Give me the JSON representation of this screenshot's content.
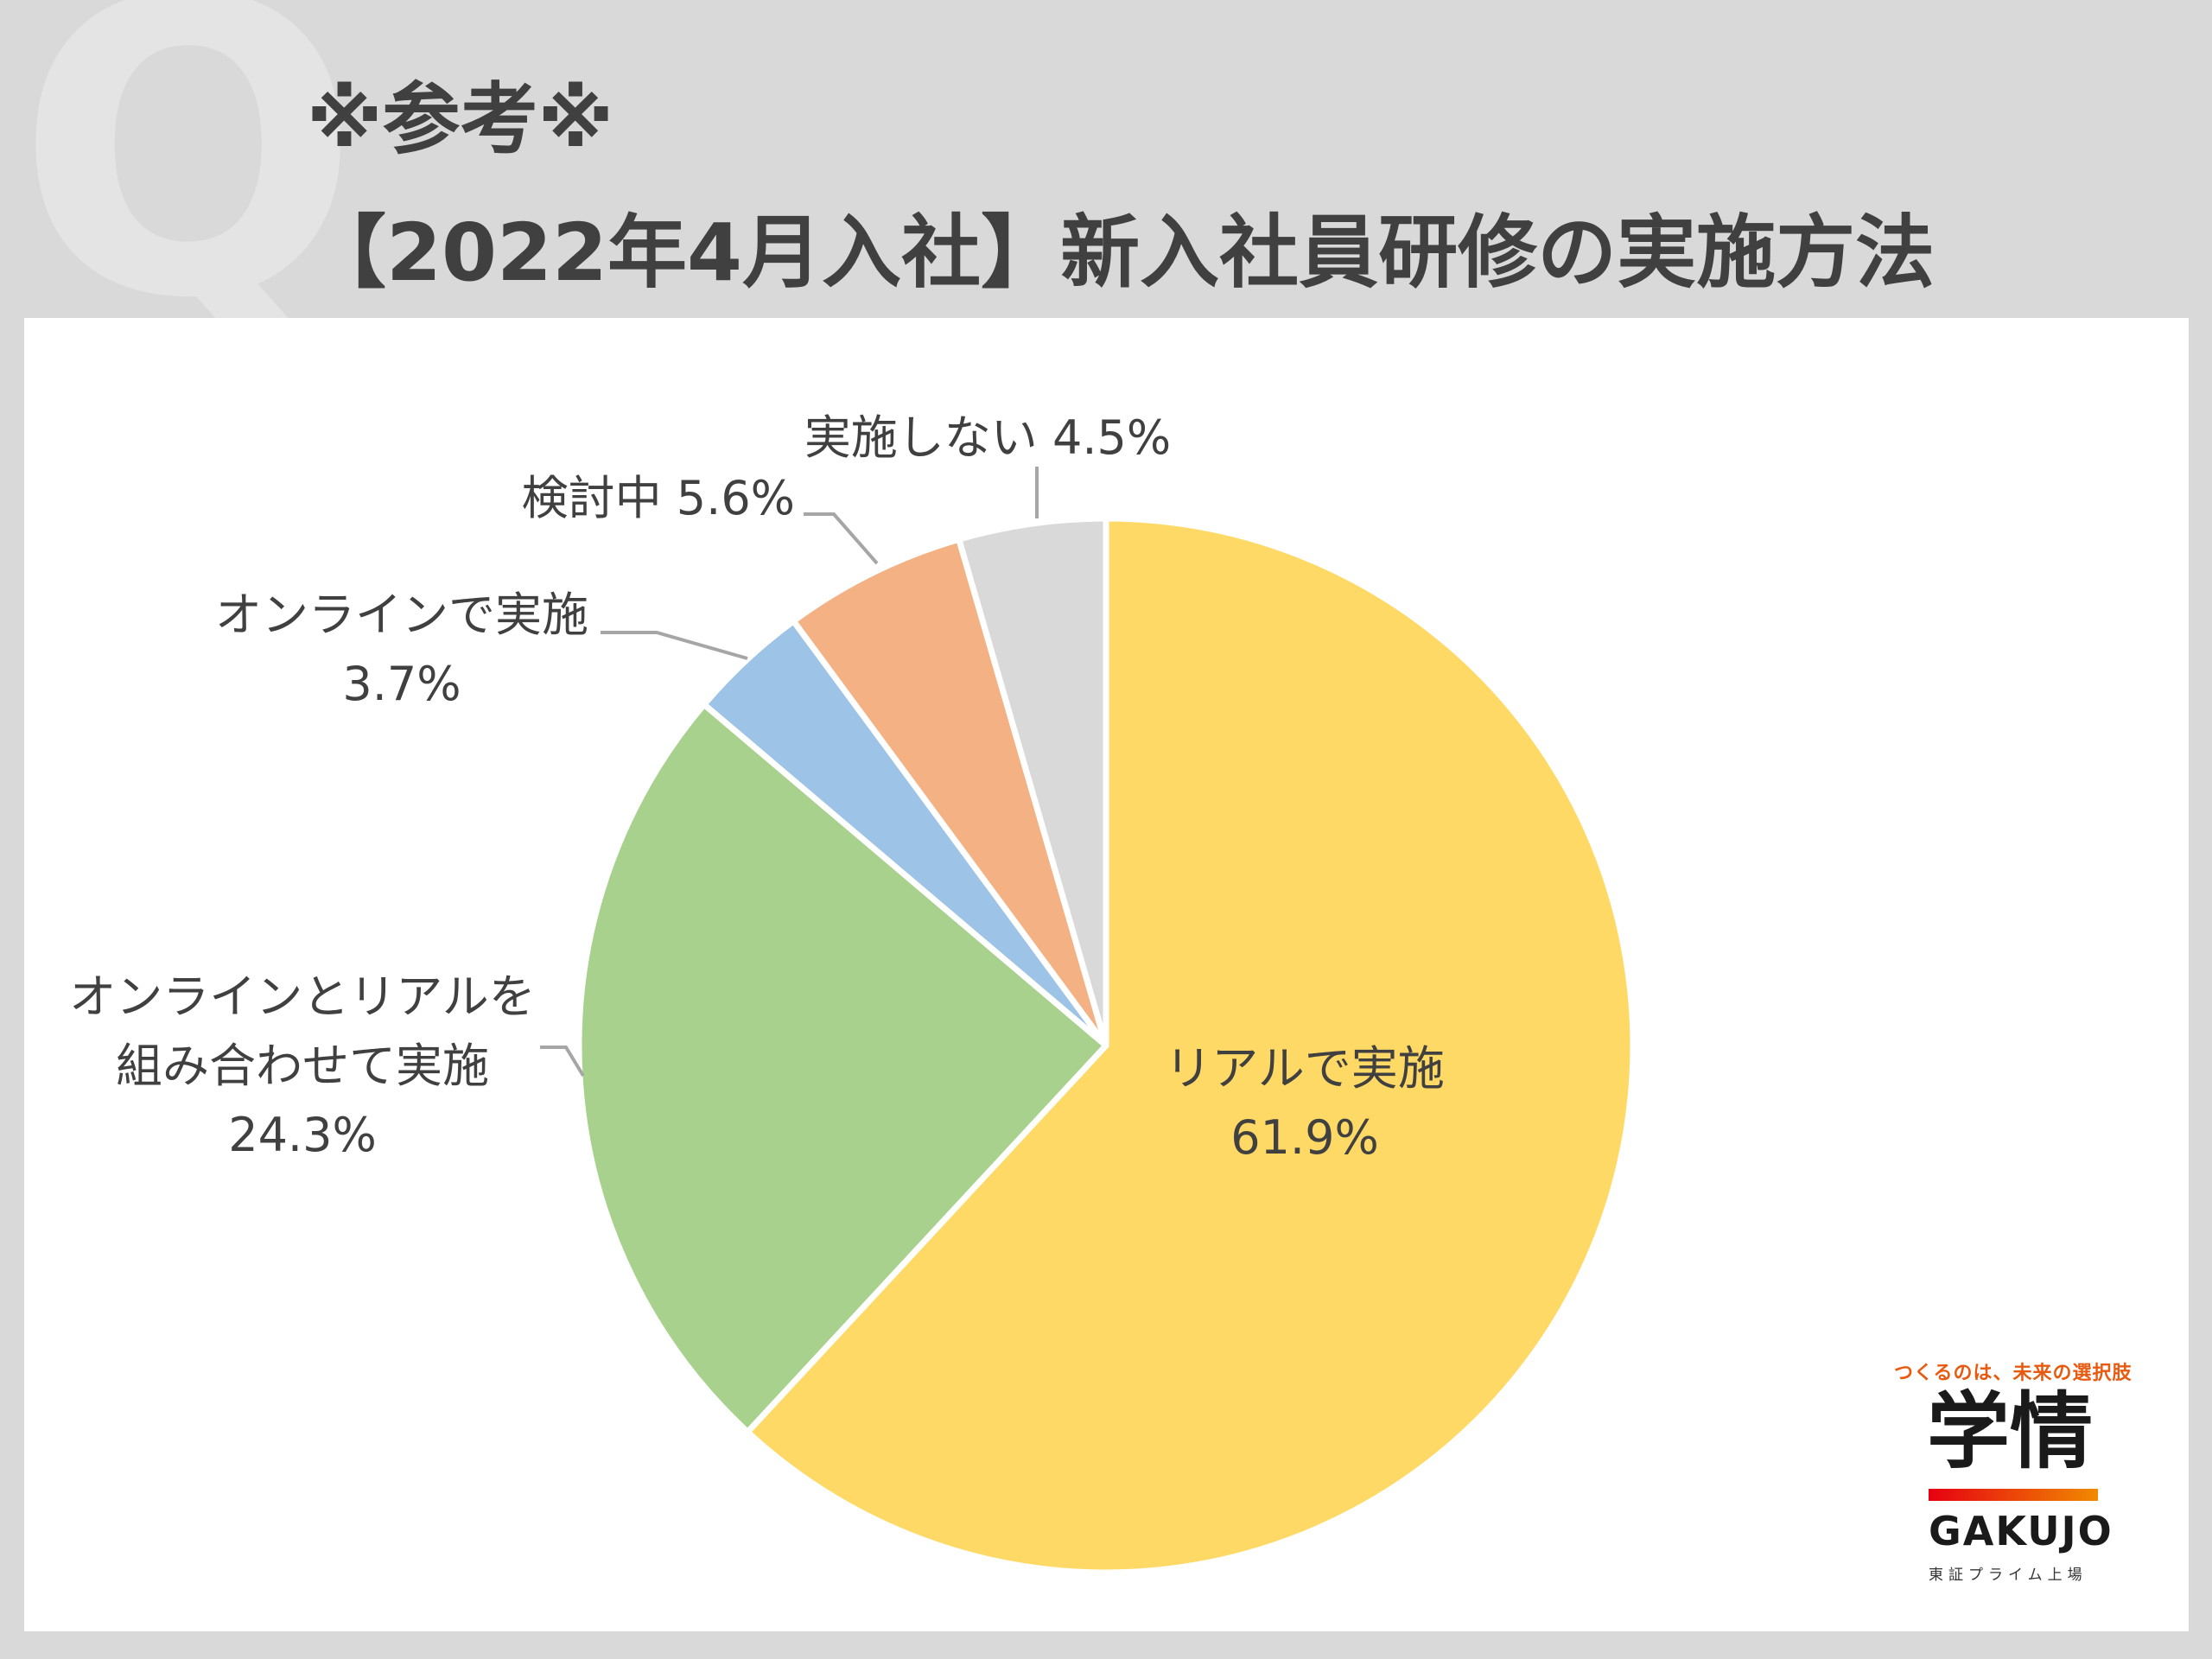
{
  "header": {
    "watermark_letter": "Q",
    "title_line1": "※参考※",
    "title_line2": "【2022年4月入社】新入社員研修の実施方法"
  },
  "chart_data": {
    "type": "pie",
    "title": "【2022年4月入社】新入社員研修の実施方法",
    "start_angle_deg": 0,
    "direction": "clockwise",
    "slices": [
      {
        "label": "リアルで実施",
        "value": 61.9,
        "value_label": "61.9%",
        "color": "#ffd966"
      },
      {
        "label": "オンラインとリアルを組み合わせて実施",
        "value": 24.3,
        "value_label": "24.3%",
        "color": "#a9d18e"
      },
      {
        "label": "オンラインで実施",
        "value": 3.7,
        "value_label": "3.7%",
        "color": "#9dc3e6"
      },
      {
        "label": "検討中",
        "value": 5.6,
        "value_label": "5.6%",
        "color": "#f4b183"
      },
      {
        "label": "実施しない",
        "value": 4.5,
        "value_label": "4.5%",
        "color": "#d9d9d9"
      }
    ],
    "labels": {
      "real_line1": "リアルで実施",
      "real_line2": "61.9%",
      "combo_line1": "オンラインとリアルを",
      "combo_line2": "組み合わせて実施",
      "combo_line3": "24.3%",
      "online_line1": "オンラインで実施",
      "online_line2": "3.7%",
      "considering": "検討中 5.6%",
      "not_held": "実施しない 4.5%"
    }
  },
  "logo": {
    "tagline": "つくるのは、未来の選択肢",
    "kanji": "学情",
    "latin": "GAKUJO",
    "subtitle": "東証プライム上場",
    "bar_color_start": "#e60012",
    "bar_color_end": "#f08a00"
  }
}
